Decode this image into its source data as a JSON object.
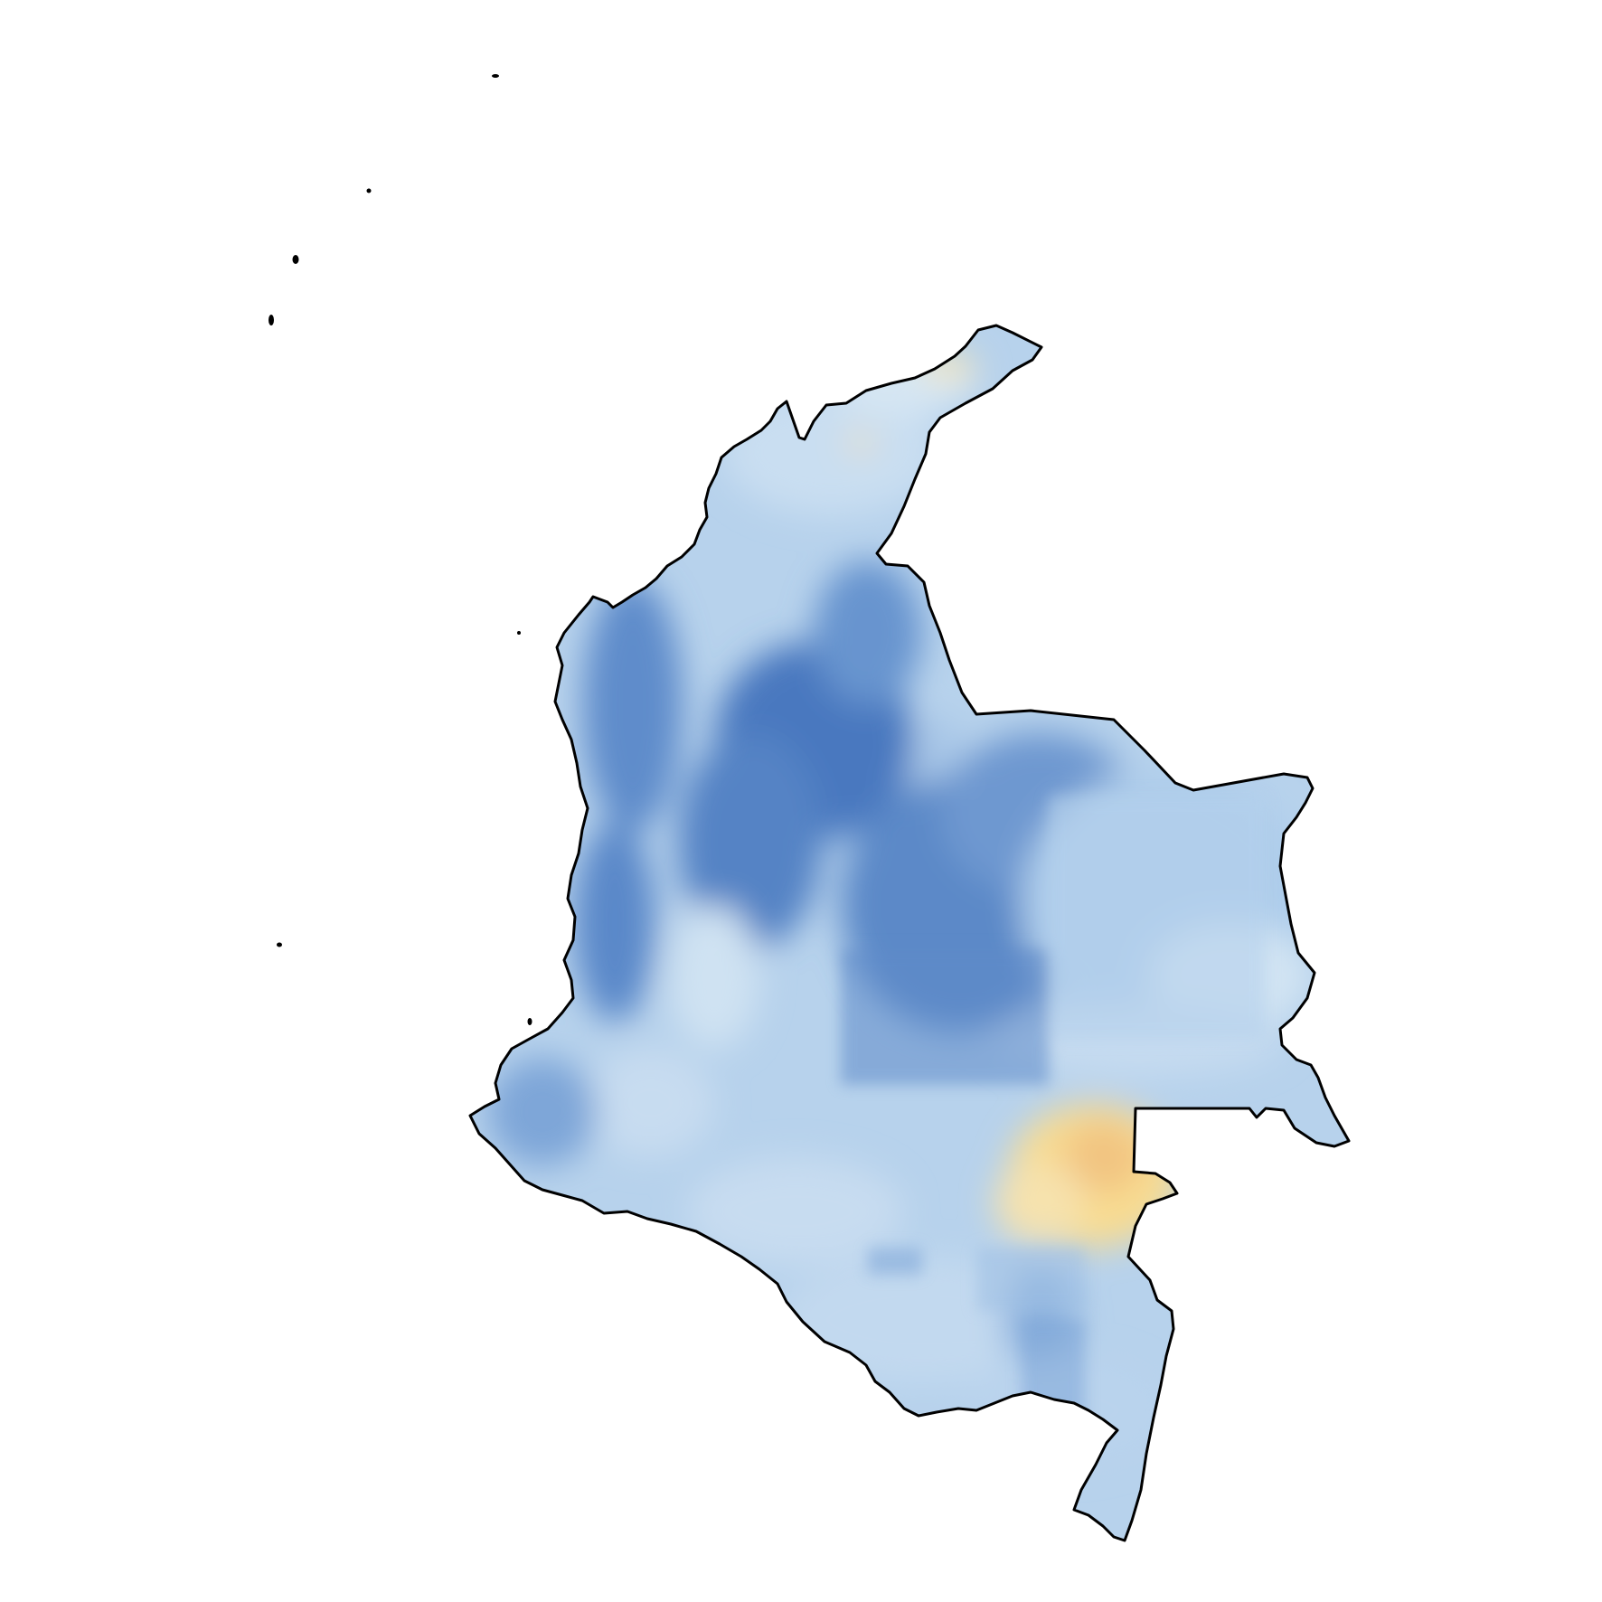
{
  "map": {
    "region": "Colombia",
    "type": "raster-choropleth",
    "palette": {
      "dark_blue": "#4a78bf",
      "mid_blue": "#7fa8d8",
      "light_blue": "#b5d0ec",
      "pale_blue": "#d8e8f4",
      "pale_yellow": "#fbe9b0",
      "yellow": "#f8dc92",
      "orange_hint": "#f2c481",
      "outline": "#000000",
      "background": "#ffffff"
    },
    "legend": null
  }
}
